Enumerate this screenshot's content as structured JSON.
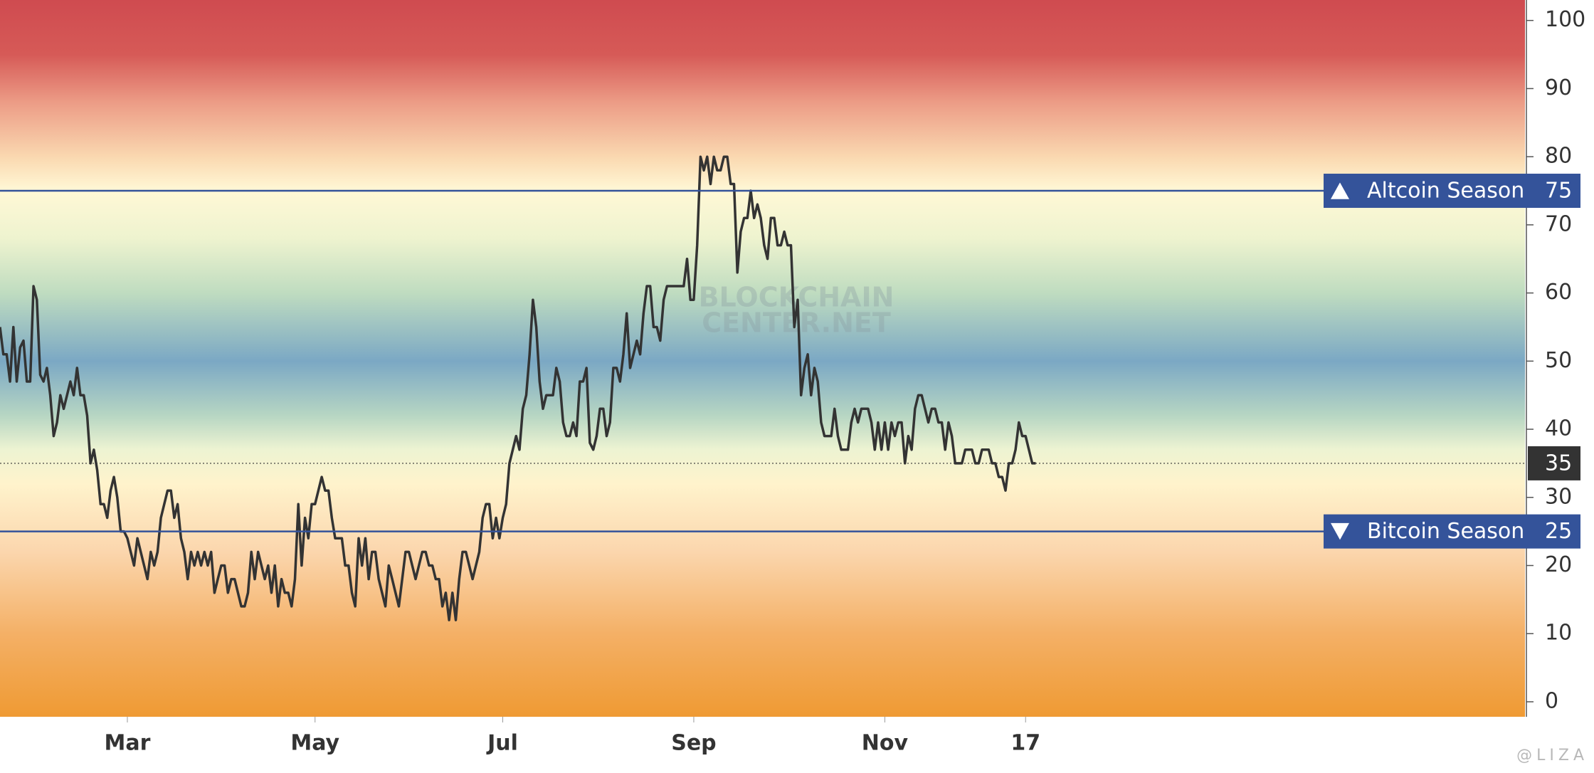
{
  "chart_data": {
    "type": "line",
    "watermark": [
      "BLOCKCHAIN",
      "CENTER.NET"
    ],
    "credit": "@LIZA",
    "x": [
      0,
      1,
      2,
      3,
      4,
      5,
      6,
      7,
      8,
      9,
      10,
      11,
      12,
      13,
      14,
      15,
      16,
      17,
      18,
      19,
      20,
      21,
      22,
      23,
      24,
      25,
      26,
      27,
      28,
      29,
      30,
      31,
      32,
      33,
      34,
      35,
      36,
      37,
      38,
      39,
      40,
      41,
      42,
      43,
      44,
      45,
      46,
      47,
      48,
      49,
      50,
      51,
      52,
      53,
      54,
      55,
      56,
      57,
      58,
      59,
      60,
      61,
      62,
      63,
      64,
      65,
      66,
      67,
      68,
      69,
      70,
      71,
      72,
      73,
      74,
      75,
      76,
      77,
      78,
      79,
      80,
      81,
      82,
      83,
      84,
      85,
      86,
      87,
      88,
      89,
      90,
      91,
      92,
      93,
      94,
      95,
      96,
      97,
      98,
      99,
      100,
      101,
      102,
      103,
      104,
      105,
      106,
      107,
      108,
      109,
      110,
      111,
      112,
      113,
      114,
      115,
      116,
      117,
      118,
      119,
      120,
      121,
      122,
      123,
      124,
      125,
      126,
      127,
      128,
      129,
      130,
      131,
      132,
      133,
      134,
      135,
      136,
      137,
      138,
      139,
      140,
      141,
      142,
      143,
      144,
      145,
      146,
      147,
      148,
      149,
      150,
      151,
      152,
      153,
      154,
      155,
      156,
      157,
      158,
      159,
      160,
      161,
      162,
      163,
      164,
      165,
      166,
      167,
      168,
      169,
      170,
      171,
      172,
      173,
      174,
      175,
      176,
      177,
      178,
      179,
      180,
      181,
      182,
      183,
      184,
      185,
      186,
      187,
      188,
      189,
      190,
      191,
      192,
      193,
      194,
      195,
      196,
      197,
      198,
      199,
      200,
      201,
      202,
      203,
      204,
      205,
      206,
      207,
      208,
      209,
      210,
      211,
      212,
      213,
      214,
      215,
      216,
      217,
      218,
      219,
      220,
      221,
      222,
      223,
      224,
      225,
      226,
      227,
      228,
      229,
      230,
      231,
      232,
      233,
      234,
      235,
      236,
      237,
      238,
      239,
      240,
      241,
      242,
      243,
      244,
      245,
      246,
      247,
      248,
      249,
      250,
      251,
      252,
      253,
      254,
      255,
      256,
      257,
      258,
      259,
      260,
      261,
      262,
      263,
      264,
      265,
      266,
      267,
      268,
      269,
      270,
      271,
      272,
      273,
      274,
      275,
      276,
      277,
      278,
      279,
      280,
      281,
      282,
      283,
      284,
      285,
      286,
      287,
      288,
      289,
      290,
      291,
      292,
      293,
      294,
      295,
      296,
      297,
      298,
      299,
      300,
      301,
      302,
      303,
      304,
      305,
      306,
      307,
      308,
      309
    ],
    "series": [
      {
        "color": "#333333",
        "values": [
          55,
          51,
          51,
          47,
          55,
          47,
          52,
          53,
          47,
          47,
          61,
          59,
          48,
          47,
          49,
          45,
          39,
          41,
          45,
          43,
          45,
          47,
          45,
          49,
          45,
          45,
          42,
          35,
          37,
          34,
          29,
          29,
          27,
          31,
          33,
          30,
          25,
          25,
          24,
          22,
          20,
          24,
          22,
          20,
          18,
          22,
          20,
          22,
          27,
          29,
          31,
          31,
          27,
          29,
          24,
          22,
          18,
          22,
          20,
          22,
          20,
          22,
          20,
          22,
          16,
          18,
          20,
          20,
          16,
          18,
          18,
          16,
          14,
          14,
          16,
          22,
          18,
          22,
          20,
          18,
          20,
          16,
          20,
          14,
          18,
          16,
          16,
          14,
          18,
          29,
          20,
          27,
          24,
          29,
          29,
          31,
          33,
          31,
          31,
          27,
          24,
          24,
          24,
          20,
          20,
          16,
          14,
          24,
          20,
          24,
          18,
          22,
          22,
          18,
          16,
          14,
          20,
          18,
          16,
          14,
          18,
          22,
          22,
          20,
          18,
          20,
          22,
          22,
          20,
          20,
          18,
          18,
          14,
          16,
          12,
          16,
          12,
          18,
          22,
          22,
          20,
          18,
          20,
          22,
          27,
          29,
          29,
          24,
          27,
          24,
          27,
          29,
          35,
          37,
          39,
          37,
          43,
          45,
          51,
          59,
          55,
          47,
          43,
          45,
          45,
          45,
          49,
          47,
          41,
          39,
          39,
          41,
          39,
          47,
          47,
          49,
          38,
          37,
          39,
          43,
          43,
          39,
          41,
          49,
          49,
          47,
          51,
          57,
          49,
          51,
          53,
          51,
          57,
          61,
          61,
          55,
          55,
          53,
          59,
          61,
          61,
          61,
          61,
          61,
          61,
          65,
          59,
          59,
          67,
          80,
          78,
          80,
          76,
          80,
          78,
          78,
          80,
          80,
          76,
          76,
          63,
          69,
          71,
          71,
          75,
          71,
          73,
          71,
          67,
          65,
          71,
          71,
          67,
          67,
          69,
          67,
          67,
          55,
          59,
          45,
          49,
          51,
          45,
          49,
          47,
          41,
          39,
          39,
          39,
          43,
          39,
          37,
          37,
          37,
          41,
          43,
          41,
          43,
          43,
          43,
          41,
          37,
          41,
          37,
          41,
          37,
          41,
          39,
          41,
          41,
          35,
          39,
          37,
          43,
          45,
          45,
          43,
          41,
          43,
          43,
          41,
          41,
          37,
          41,
          39,
          35,
          35,
          35,
          37,
          37,
          37,
          35,
          35,
          37,
          37,
          37,
          35,
          35,
          33,
          33,
          31,
          35,
          35,
          37,
          41,
          39,
          39,
          37,
          35,
          35
        ]
      }
    ],
    "xlim": [
      0,
      455
    ],
    "xticks": [
      {
        "value": 38,
        "label": "Mar"
      },
      {
        "value": 94,
        "label": "May"
      },
      {
        "value": 150,
        "label": "Jul"
      },
      {
        "value": 207,
        "label": "Sep"
      },
      {
        "value": 264,
        "label": "Nov"
      },
      {
        "value": 306,
        "label": "17"
      }
    ],
    "ylim": [
      -2.2,
      103
    ],
    "yticks": [
      0,
      10,
      20,
      30,
      40,
      50,
      60,
      70,
      80,
      90,
      100
    ],
    "levels": [
      {
        "value": 75,
        "label": "Altcoin Season",
        "direction": "up",
        "color": "#34539a"
      },
      {
        "value": 25,
        "label": "Bitcoin Season",
        "direction": "down",
        "color": "#34539a"
      }
    ],
    "current_value": 35,
    "current_color": "#333333"
  }
}
